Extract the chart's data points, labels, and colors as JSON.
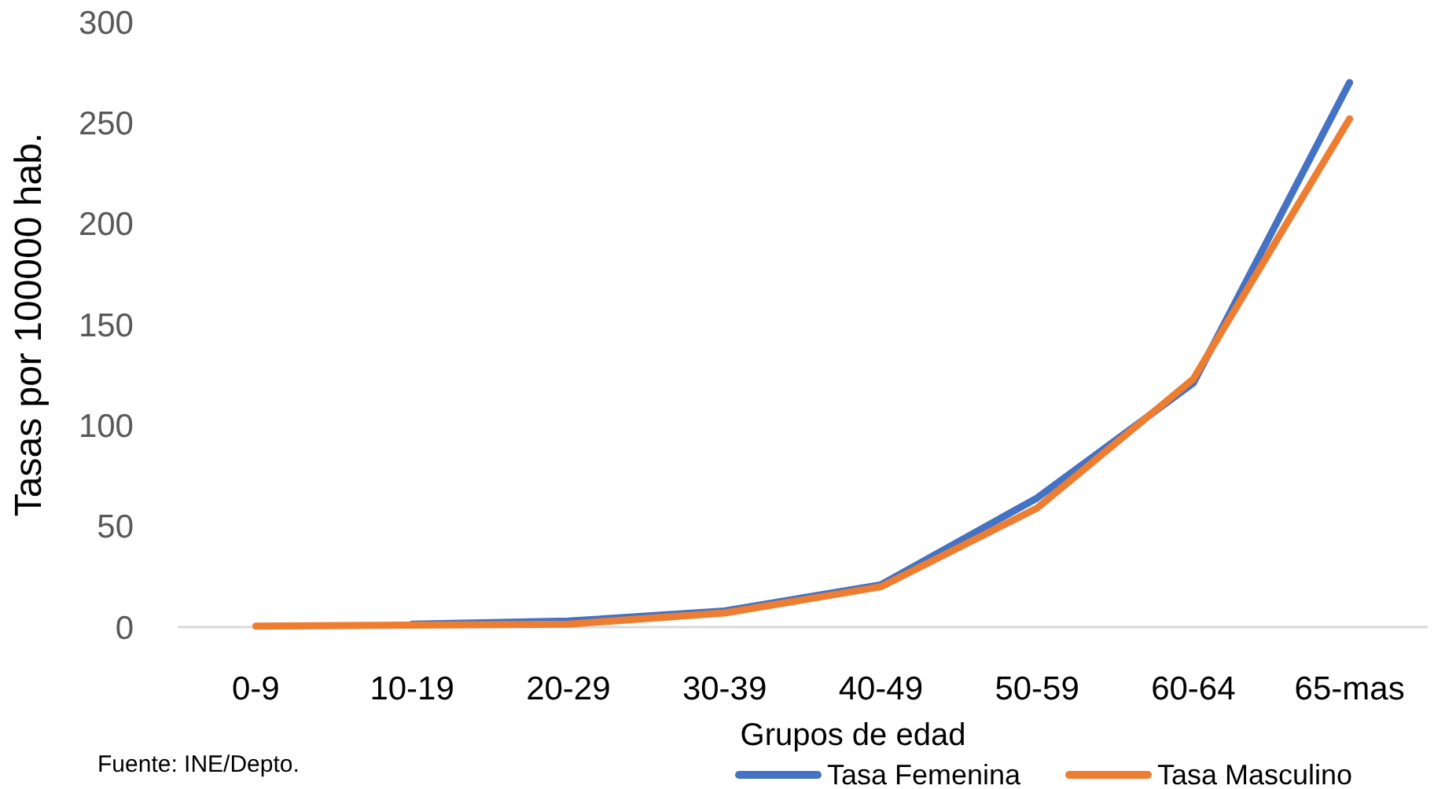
{
  "chart_data": {
    "type": "line",
    "xlabel": "Grupos de edad",
    "ylabel": "Tasas por 100000 hab.",
    "categories": [
      "0-9",
      "10-19",
      "20-29",
      "30-39",
      "40-49",
      "50-59",
      "60-64",
      "65-mas"
    ],
    "series": [
      {
        "name": "Tasa Femenina",
        "color": "#4472c4",
        "values": [
          null,
          1.5,
          3,
          8,
          21,
          64,
          121,
          270
        ]
      },
      {
        "name": "Tasa Masculino",
        "color": "#ed7d31",
        "values": [
          0.5,
          1,
          1.5,
          7,
          20,
          59,
          123,
          252
        ]
      }
    ],
    "ylim": [
      0,
      300
    ],
    "yticks": [
      0,
      50,
      100,
      150,
      200,
      250,
      300
    ],
    "grid": false,
    "legend": "bottom right",
    "marker": "none",
    "line_style": "solid",
    "annotations": [
      "Fuente: INE/Depto."
    ]
  }
}
